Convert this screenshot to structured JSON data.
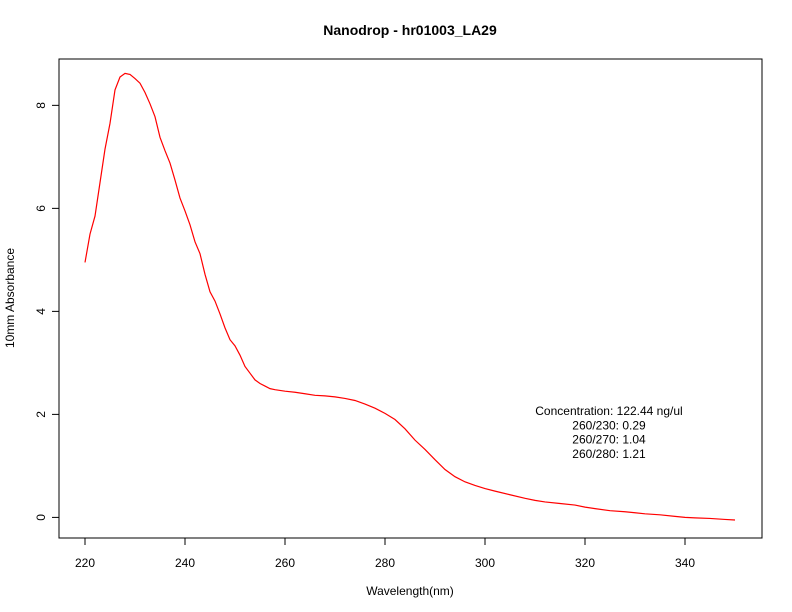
{
  "chart_data": {
    "type": "line",
    "title": "Nanodrop - hr01003_LA29",
    "xlabel": "Wavelength(nm)",
    "ylabel": "10mm Absorbance",
    "xlim": [
      220,
      350
    ],
    "ylim": [
      -0.4,
      8.9
    ],
    "xticks": [
      220,
      240,
      260,
      280,
      300,
      320,
      340
    ],
    "yticks": [
      0,
      2,
      4,
      6,
      8
    ],
    "grid": false,
    "line_color": "#ff0000",
    "series": [
      {
        "x": [
          220,
          221,
          222,
          223,
          224,
          225,
          226,
          227,
          228,
          229,
          230,
          231,
          232,
          233,
          234,
          235,
          236,
          237,
          238,
          239,
          240,
          241,
          242,
          243,
          244,
          245,
          246,
          247,
          248,
          249,
          250,
          251,
          252,
          253,
          254,
          255,
          256,
          257,
          258,
          260,
          262,
          264,
          266,
          268,
          270,
          272,
          274,
          276,
          278,
          280,
          282,
          284,
          286,
          288,
          290,
          292,
          294,
          296,
          298,
          300,
          302,
          305,
          308,
          310,
          312,
          315,
          318,
          320,
          322,
          325,
          328,
          330,
          332,
          335,
          338,
          340,
          342,
          345,
          348,
          350
        ],
        "values": [
          4.95,
          5.5,
          5.85,
          6.5,
          7.15,
          7.65,
          8.3,
          8.55,
          8.62,
          8.6,
          8.52,
          8.43,
          8.25,
          8.03,
          7.78,
          7.38,
          7.12,
          6.88,
          6.55,
          6.2,
          5.95,
          5.68,
          5.35,
          5.12,
          4.72,
          4.38,
          4.2,
          3.95,
          3.68,
          3.45,
          3.33,
          3.15,
          2.93,
          2.8,
          2.67,
          2.6,
          2.55,
          2.5,
          2.48,
          2.45,
          2.43,
          2.4,
          2.37,
          2.36,
          2.34,
          2.31,
          2.27,
          2.2,
          2.12,
          2.02,
          1.9,
          1.72,
          1.5,
          1.32,
          1.12,
          0.93,
          0.79,
          0.69,
          0.62,
          0.56,
          0.51,
          0.44,
          0.37,
          0.33,
          0.3,
          0.27,
          0.24,
          0.2,
          0.17,
          0.13,
          0.11,
          0.09,
          0.07,
          0.05,
          0.02,
          0.0,
          -0.01,
          -0.02,
          -0.04,
          -0.05
        ]
      }
    ],
    "annotations": [
      "Concentration: 122.44 ng/ul",
      "260/230: 0.29",
      "260/270: 1.04",
      "260/280: 1.21"
    ]
  }
}
